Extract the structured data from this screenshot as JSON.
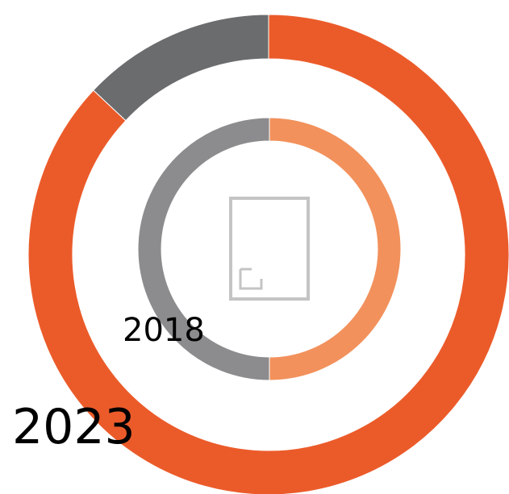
{
  "chart_data": [
    {
      "type": "donut",
      "label": "2023",
      "values": [
        87,
        13
      ],
      "colors": [
        "#eb5b2a",
        "#6b6c6e"
      ]
    },
    {
      "type": "donut",
      "label": "2018",
      "values": [
        50,
        50
      ],
      "colors": [
        "#f2915c",
        "#8c8c8e"
      ]
    }
  ]
}
